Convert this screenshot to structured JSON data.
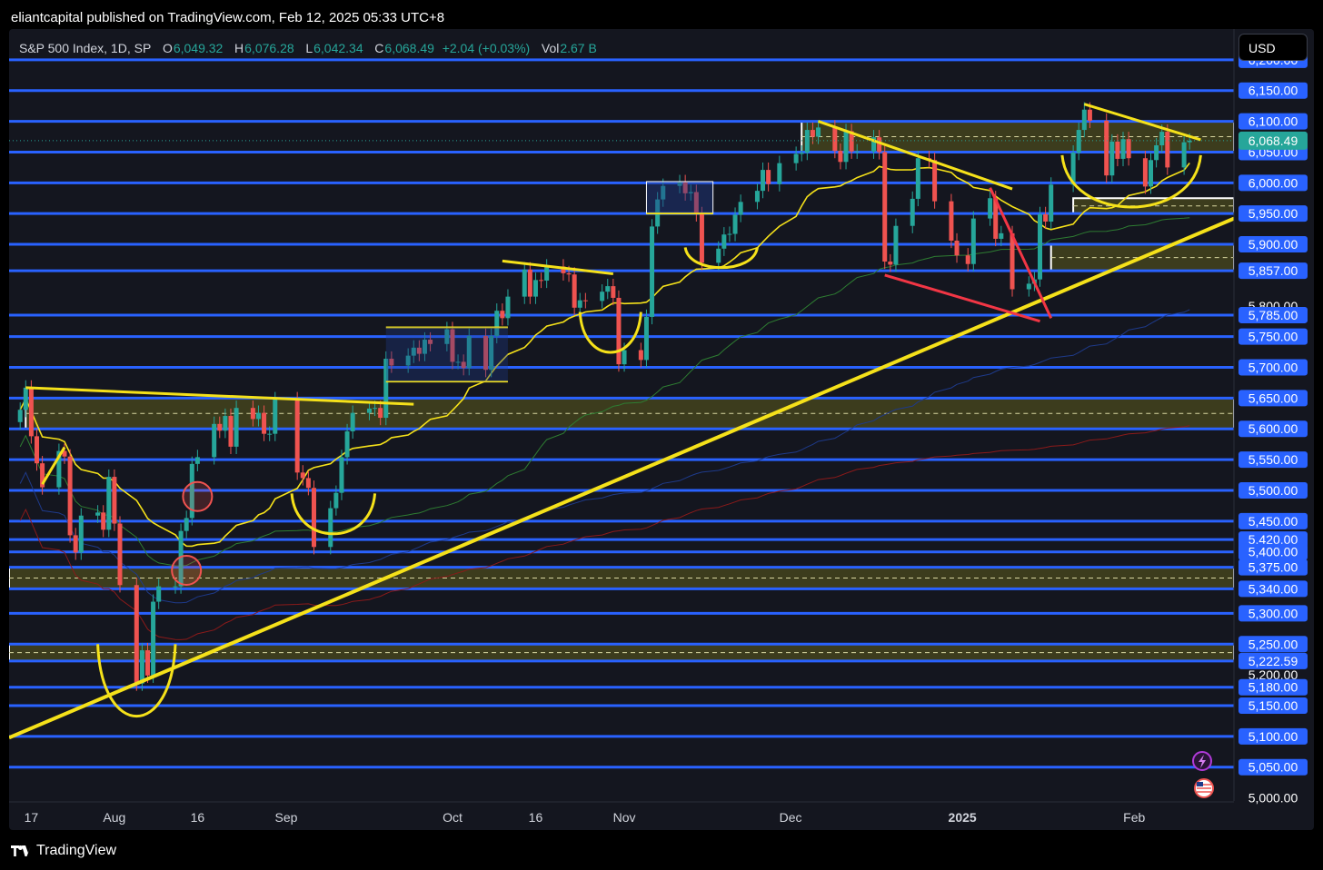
{
  "header": {
    "published": "eliantcapital published on TradingView.com, Feb 12, 2025 05:33 UTC+8"
  },
  "legend": {
    "symbol": "S&P 500 Index, 1D, SP",
    "open_label": "O",
    "open": "6,049.32",
    "high_label": "H",
    "high": "6,076.28",
    "low_label": "L",
    "low": "6,042.34",
    "close_label": "C",
    "close": "6,068.49",
    "change": "+2.04 (+0.03%)",
    "vol_label": "Vol",
    "vol": "2.67 B"
  },
  "currency": "USD",
  "footer": {
    "brand": "TradingView"
  },
  "colors": {
    "background": "#14161f",
    "up": "#26a69a",
    "down": "#ef5350",
    "level": "#2962ff",
    "zone": "#4a4a1e",
    "annotation": "#f5e11a",
    "red_annotation": "#f23645"
  },
  "chart_data": {
    "type": "candlestick",
    "symbol": "S&P 500 Index",
    "interval": "1D",
    "y_range": [
      4995,
      6250
    ],
    "x_range": [
      "2024-07-13",
      "2025-02-19"
    ],
    "last_price": 6068.49,
    "last_price_label": "6,068.49",
    "price_labels": [
      "6,200.00",
      "6,150.00",
      "6,100.00",
      "6,050.00",
      "6,000.00",
      "5,950.00",
      "5,900.00",
      "5,857.00",
      "5,800.00",
      "5,785.00",
      "5,750.00",
      "5,700.00",
      "5,650.00",
      "5,600.00",
      "5,550.00",
      "5,500.00",
      "5,450.00",
      "5,420.00",
      "5,400.00",
      "5,375.00",
      "5,340.00",
      "5,300.00",
      "5,250.00",
      "5,222.59",
      "5,200.00",
      "5,180.00",
      "5,150.00",
      "5,100.00",
      "5,050.00",
      "5,000.00"
    ],
    "horizontal_levels": [
      6200,
      6150,
      6100,
      6050,
      6000,
      5950,
      5900,
      5857,
      5785,
      5750,
      5700,
      5650,
      5600,
      5550,
      5500,
      5450,
      5420,
      5400,
      5375,
      5340,
      5300,
      5250,
      5222.59,
      5180,
      5150,
      5100,
      5050
    ],
    "x_tick_labels": [
      {
        "date": "2024-07-17",
        "label": "17"
      },
      {
        "date": "2024-08-01",
        "label": "Aug"
      },
      {
        "date": "2024-08-16",
        "label": "16"
      },
      {
        "date": "2024-09-01",
        "label": "Sep"
      },
      {
        "date": "2024-10-01",
        "label": "Oct"
      },
      {
        "date": "2024-10-16",
        "label": "16"
      },
      {
        "date": "2024-11-01",
        "label": "Nov"
      },
      {
        "date": "2024-12-01",
        "label": "Dec"
      },
      {
        "date": "2025-01-01",
        "label": "2025"
      },
      {
        "date": "2025-02-01",
        "label": "Feb"
      }
    ],
    "zones": [
      {
        "from": 6050,
        "to": 6100,
        "start": "2024-12-03",
        "end": "2025-02-19"
      },
      {
        "from": 5950,
        "to": 5975,
        "start": "2025-01-21",
        "end": "2025-02-19"
      },
      {
        "from": 5857,
        "to": 5900,
        "start": "2025-01-17",
        "end": "2025-02-19"
      },
      {
        "from": 5600,
        "to": 5650,
        "start": "2024-07-16",
        "end": "2025-02-19"
      },
      {
        "from": 5340,
        "to": 5375,
        "start": "2024-07-13",
        "end": "2025-02-19"
      },
      {
        "from": 5222.59,
        "to": 5250,
        "start": "2024-07-13",
        "end": "2025-02-19"
      }
    ],
    "series": [
      {
        "name": "Close",
        "type": "candles",
        "values": [
          [
            "2024-07-15",
            5631
          ],
          [
            "2024-07-16",
            5667
          ],
          [
            "2024-07-17",
            5588
          ],
          [
            "2024-07-18",
            5544
          ],
          [
            "2024-07-19",
            5505
          ],
          [
            "2024-07-22",
            5564
          ],
          [
            "2024-07-23",
            5555
          ],
          [
            "2024-07-24",
            5427
          ],
          [
            "2024-07-25",
            5399
          ],
          [
            "2024-07-26",
            5459
          ],
          [
            "2024-07-29",
            5464
          ],
          [
            "2024-07-30",
            5436
          ],
          [
            "2024-07-31",
            5522
          ],
          [
            "2024-08-01",
            5446
          ],
          [
            "2024-08-02",
            5346
          ],
          [
            "2024-08-05",
            5186
          ],
          [
            "2024-08-06",
            5240
          ],
          [
            "2024-08-07",
            5199
          ],
          [
            "2024-08-08",
            5319
          ],
          [
            "2024-08-09",
            5344
          ],
          [
            "2024-08-12",
            5344
          ],
          [
            "2024-08-13",
            5434
          ],
          [
            "2024-08-14",
            5455
          ],
          [
            "2024-08-15",
            5543
          ],
          [
            "2024-08-16",
            5554
          ],
          [
            "2024-08-19",
            5608
          ],
          [
            "2024-08-20",
            5597
          ],
          [
            "2024-08-21",
            5621
          ],
          [
            "2024-08-22",
            5571
          ],
          [
            "2024-08-23",
            5634
          ],
          [
            "2024-08-26",
            5616
          ],
          [
            "2024-08-27",
            5626
          ],
          [
            "2024-08-28",
            5592
          ],
          [
            "2024-08-29",
            5592
          ],
          [
            "2024-08-30",
            5648
          ],
          [
            "2024-09-03",
            5529
          ],
          [
            "2024-09-04",
            5520
          ],
          [
            "2024-09-05",
            5504
          ],
          [
            "2024-09-06",
            5408
          ],
          [
            "2024-09-09",
            5471
          ],
          [
            "2024-09-10",
            5496
          ],
          [
            "2024-09-11",
            5554
          ],
          [
            "2024-09-12",
            5596
          ],
          [
            "2024-09-13",
            5626
          ],
          [
            "2024-09-16",
            5633
          ],
          [
            "2024-09-17",
            5634
          ],
          [
            "2024-09-18",
            5618
          ],
          [
            "2024-09-19",
            5714
          ],
          [
            "2024-09-20",
            5703
          ],
          [
            "2024-09-23",
            5719
          ],
          [
            "2024-09-24",
            5732
          ],
          [
            "2024-09-25",
            5722
          ],
          [
            "2024-09-26",
            5745
          ],
          [
            "2024-09-27",
            5738
          ],
          [
            "2024-09-30",
            5762
          ],
          [
            "2024-10-01",
            5709
          ],
          [
            "2024-10-02",
            5709
          ],
          [
            "2024-10-03",
            5699
          ],
          [
            "2024-10-04",
            5751
          ],
          [
            "2024-10-07",
            5696
          ],
          [
            "2024-10-08",
            5751
          ],
          [
            "2024-10-09",
            5792
          ],
          [
            "2024-10-10",
            5780
          ],
          [
            "2024-10-11",
            5815
          ],
          [
            "2024-10-14",
            5859
          ],
          [
            "2024-10-15",
            5815
          ],
          [
            "2024-10-16",
            5842
          ],
          [
            "2024-10-17",
            5841
          ],
          [
            "2024-10-18",
            5864
          ],
          [
            "2024-10-21",
            5853
          ],
          [
            "2024-10-22",
            5851
          ],
          [
            "2024-10-23",
            5797
          ],
          [
            "2024-10-24",
            5809
          ],
          [
            "2024-10-25",
            5808
          ],
          [
            "2024-10-28",
            5823
          ],
          [
            "2024-10-29",
            5832
          ],
          [
            "2024-10-30",
            5813
          ],
          [
            "2024-10-31",
            5705
          ],
          [
            "2024-11-01",
            5728
          ],
          [
            "2024-11-04",
            5712
          ],
          [
            "2024-11-05",
            5782
          ],
          [
            "2024-11-06",
            5929
          ],
          [
            "2024-11-07",
            5973
          ],
          [
            "2024-11-08",
            5995
          ],
          [
            "2024-11-11",
            6001
          ],
          [
            "2024-11-12",
            5983
          ],
          [
            "2024-11-13",
            5985
          ],
          [
            "2024-11-14",
            5949
          ],
          [
            "2024-11-15",
            5870
          ],
          [
            "2024-11-18",
            5893
          ],
          [
            "2024-11-19",
            5916
          ],
          [
            "2024-11-20",
            5917
          ],
          [
            "2024-11-21",
            5948
          ],
          [
            "2024-11-22",
            5969
          ],
          [
            "2024-11-25",
            5987
          ],
          [
            "2024-11-26",
            6021
          ],
          [
            "2024-11-27",
            5998
          ],
          [
            "2024-11-29",
            6032
          ],
          [
            "2024-12-02",
            6047
          ],
          [
            "2024-12-03",
            6049
          ],
          [
            "2024-12-04",
            6086
          ],
          [
            "2024-12-05",
            6075
          ],
          [
            "2024-12-06",
            6090
          ],
          [
            "2024-12-09",
            6052
          ],
          [
            "2024-12-10",
            6034
          ],
          [
            "2024-12-11",
            6084
          ],
          [
            "2024-12-12",
            6051
          ],
          [
            "2024-12-13",
            6051
          ],
          [
            "2024-12-16",
            6074
          ],
          [
            "2024-12-17",
            6050
          ],
          [
            "2024-12-18",
            5872
          ],
          [
            "2024-12-19",
            5867
          ],
          [
            "2024-12-20",
            5930
          ],
          [
            "2024-12-23",
            5974
          ],
          [
            "2024-12-24",
            6040
          ],
          [
            "2024-12-26",
            6037
          ],
          [
            "2024-12-27",
            5970
          ],
          [
            "2024-12-30",
            5906
          ],
          [
            "2024-12-31",
            5882
          ],
          [
            "2025-01-02",
            5868
          ],
          [
            "2025-01-03",
            5942
          ],
          [
            "2025-01-06",
            5975
          ],
          [
            "2025-01-07",
            5909
          ],
          [
            "2025-01-08",
            5918
          ],
          [
            "2025-01-10",
            5827
          ],
          [
            "2025-01-13",
            5836
          ],
          [
            "2025-01-14",
            5843
          ],
          [
            "2025-01-15",
            5949
          ],
          [
            "2025-01-16",
            5937
          ],
          [
            "2025-01-17",
            5997
          ],
          [
            "2025-01-21",
            6049
          ],
          [
            "2025-01-22",
            6086
          ],
          [
            "2025-01-23",
            6119
          ],
          [
            "2025-01-24",
            6101
          ],
          [
            "2025-01-27",
            6012
          ],
          [
            "2025-01-28",
            6067
          ],
          [
            "2025-01-29",
            6039
          ],
          [
            "2025-01-30",
            6071
          ],
          [
            "2025-01-31",
            6040
          ],
          [
            "2025-02-03",
            5994
          ],
          [
            "2025-02-04",
            6037
          ],
          [
            "2025-02-05",
            6061
          ],
          [
            "2025-02-06",
            6083
          ],
          [
            "2025-02-07",
            6025
          ],
          [
            "2025-02-10",
            6066
          ],
          [
            "2025-02-11",
            6068.49
          ]
        ]
      },
      {
        "name": "MA 20",
        "type": "line",
        "color": "#f5e11a"
      },
      {
        "name": "MA 50",
        "type": "line",
        "color": "#2e7d32"
      },
      {
        "name": "MA 100",
        "type": "line",
        "color": "#1e3a8a"
      },
      {
        "name": "MA 200",
        "type": "line",
        "color": "#b71c1c"
      }
    ]
  }
}
